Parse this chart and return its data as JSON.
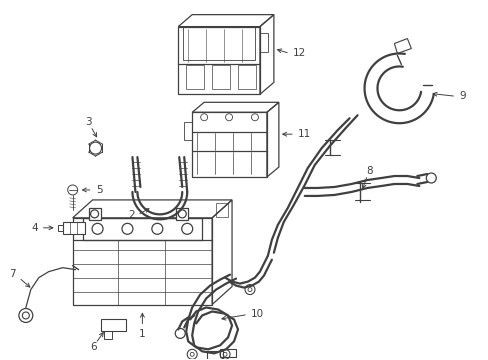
{
  "background_color": "#ffffff",
  "line_color": "#404040",
  "label_color": "#000000",
  "fig_width": 4.89,
  "fig_height": 3.6,
  "dpi": 100,
  "lw": 0.9,
  "lw_thick": 1.6,
  "fontsize": 7.5
}
